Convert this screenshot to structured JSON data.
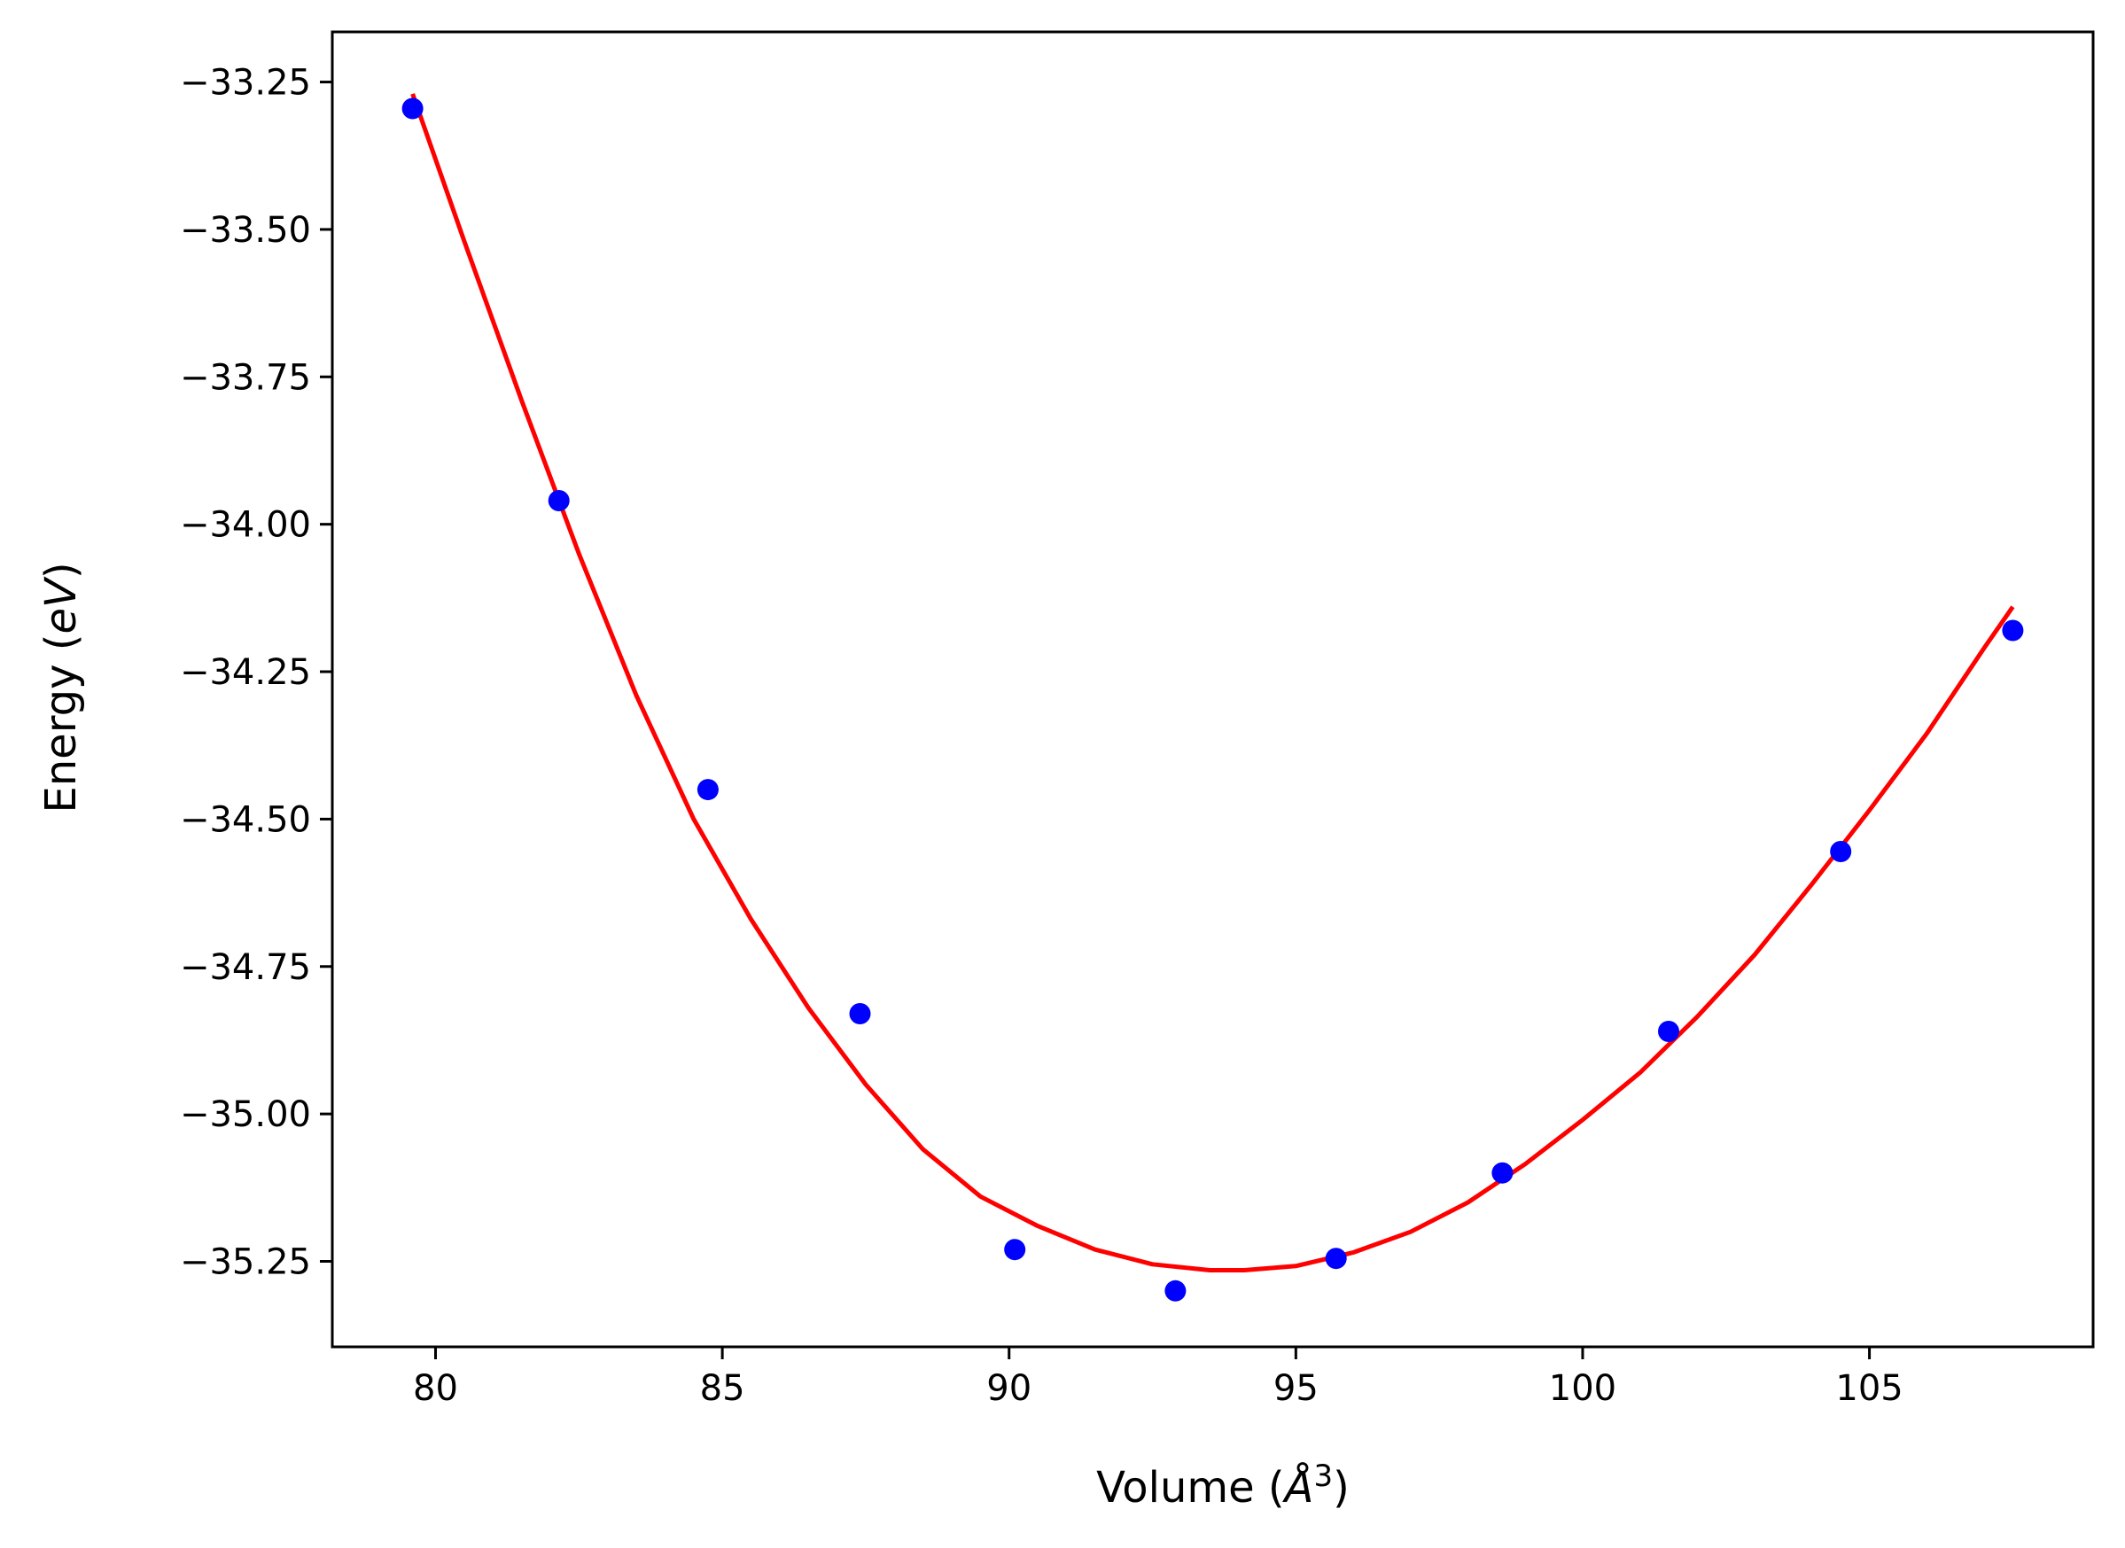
{
  "chart_data": {
    "type": "scatter",
    "xlabel": "Volume (Å³)",
    "ylabel": "Energy (eV)",
    "xlabel_parts": {
      "prefix": "Volume (",
      "symbol": "Å",
      "power": "3",
      "suffix": ")"
    },
    "ylabel_parts": {
      "prefix": "Energy (",
      "unit": "eV",
      "suffix": ")"
    },
    "xlim": [
      78.2,
      108.9
    ],
    "ylim": [
      -35.395,
      -33.165
    ],
    "xticks": [
      80,
      85,
      90,
      95,
      100,
      105
    ],
    "xtick_labels": [
      "80",
      "85",
      "90",
      "95",
      "100",
      "105"
    ],
    "yticks": [
      -33.25,
      -33.5,
      -33.75,
      -34.0,
      -34.25,
      -34.5,
      -34.75,
      -35.0,
      -35.25
    ],
    "ytick_labels": [
      "−33.25",
      "−33.50",
      "−33.75",
      "−34.00",
      "−34.25",
      "−34.50",
      "−34.75",
      "−35.00",
      "−35.25"
    ],
    "grid": false,
    "series": [
      {
        "kind": "points",
        "color": "#0000ff",
        "x": [
          79.6,
          82.15,
          84.75,
          87.4,
          90.1,
          92.9,
          95.7,
          98.6,
          101.5,
          104.5,
          107.5
        ],
        "y": [
          -33.295,
          -33.96,
          -34.45,
          -34.83,
          -35.23,
          -35.3,
          -35.245,
          -35.1,
          -34.86,
          -34.555,
          -34.18
        ]
      },
      {
        "kind": "line",
        "color": "#ff0000",
        "x": [
          79.6,
          80.5,
          81.5,
          82.5,
          83.5,
          84.5,
          85.5,
          86.5,
          87.5,
          88.5,
          89.5,
          90.5,
          91.5,
          92.5,
          93.5,
          94.1,
          95,
          96,
          97,
          98,
          99,
          100,
          101,
          102,
          103,
          104,
          105,
          106,
          107,
          107.5
        ],
        "y": [
          -33.27,
          -33.52,
          -33.79,
          -34.05,
          -34.29,
          -34.5,
          -34.67,
          -34.82,
          -34.95,
          -35.06,
          -35.14,
          -35.19,
          -35.23,
          -35.255,
          -35.265,
          -35.265,
          -35.258,
          -35.235,
          -35.2,
          -35.15,
          -35.085,
          -35.01,
          -34.93,
          -34.835,
          -34.73,
          -34.61,
          -34.485,
          -34.355,
          -34.21,
          -34.14
        ]
      }
    ]
  }
}
